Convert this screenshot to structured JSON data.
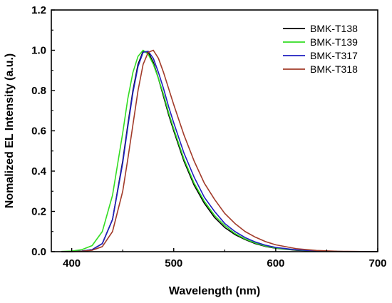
{
  "chart_data": {
    "type": "line",
    "title": "",
    "xlabel": "Wavelength (nm)",
    "ylabel": "Nomalized EL Intensity (a.u.)",
    "xlim": [
      380,
      700
    ],
    "ylim": [
      0,
      1.2
    ],
    "xticks": [
      400,
      500,
      600,
      700
    ],
    "yticks": [
      0.0,
      0.2,
      0.4,
      0.6,
      0.8,
      1.0,
      1.2
    ],
    "grid": false,
    "legend_position": "top-right",
    "x": [
      390,
      400,
      410,
      420,
      430,
      440,
      450,
      455,
      460,
      465,
      470,
      475,
      480,
      485,
      490,
      495,
      500,
      510,
      520,
      530,
      540,
      550,
      560,
      570,
      580,
      590,
      600,
      620,
      640,
      660,
      680,
      700
    ],
    "series": [
      {
        "name": "BMK-T138",
        "color": "#000000",
        "values": [
          0.0,
          0.0,
          0.003,
          0.01,
          0.04,
          0.16,
          0.45,
          0.63,
          0.8,
          0.93,
          0.995,
          0.99,
          0.94,
          0.86,
          0.77,
          0.68,
          0.6,
          0.45,
          0.33,
          0.24,
          0.17,
          0.12,
          0.085,
          0.06,
          0.04,
          0.026,
          0.017,
          0.007,
          0.003,
          0.001,
          0.0,
          0.0
        ]
      },
      {
        "name": "BMK-T139",
        "color": "#33dd22",
        "values": [
          0.001,
          0.003,
          0.01,
          0.03,
          0.1,
          0.28,
          0.59,
          0.76,
          0.89,
          0.97,
          1.0,
          0.98,
          0.93,
          0.86,
          0.78,
          0.69,
          0.61,
          0.46,
          0.34,
          0.25,
          0.18,
          0.13,
          0.09,
          0.063,
          0.043,
          0.028,
          0.018,
          0.008,
          0.003,
          0.001,
          0.0,
          0.0
        ]
      },
      {
        "name": "BMK-T317",
        "color": "#1f1fc0",
        "values": [
          0.0,
          0.0,
          0.003,
          0.01,
          0.04,
          0.16,
          0.44,
          0.62,
          0.79,
          0.92,
          0.99,
          0.995,
          0.96,
          0.89,
          0.81,
          0.72,
          0.64,
          0.49,
          0.37,
          0.27,
          0.2,
          0.14,
          0.1,
          0.07,
          0.048,
          0.032,
          0.021,
          0.009,
          0.004,
          0.001,
          0.0,
          0.0
        ]
      },
      {
        "name": "BMK-T318",
        "color": "#a23b2a",
        "values": [
          0.0,
          0.0,
          0.002,
          0.007,
          0.025,
          0.1,
          0.3,
          0.46,
          0.63,
          0.8,
          0.93,
          0.99,
          1.0,
          0.96,
          0.89,
          0.81,
          0.73,
          0.58,
          0.45,
          0.34,
          0.26,
          0.19,
          0.14,
          0.1,
          0.072,
          0.05,
          0.034,
          0.015,
          0.006,
          0.002,
          0.001,
          0.0
        ]
      }
    ]
  }
}
